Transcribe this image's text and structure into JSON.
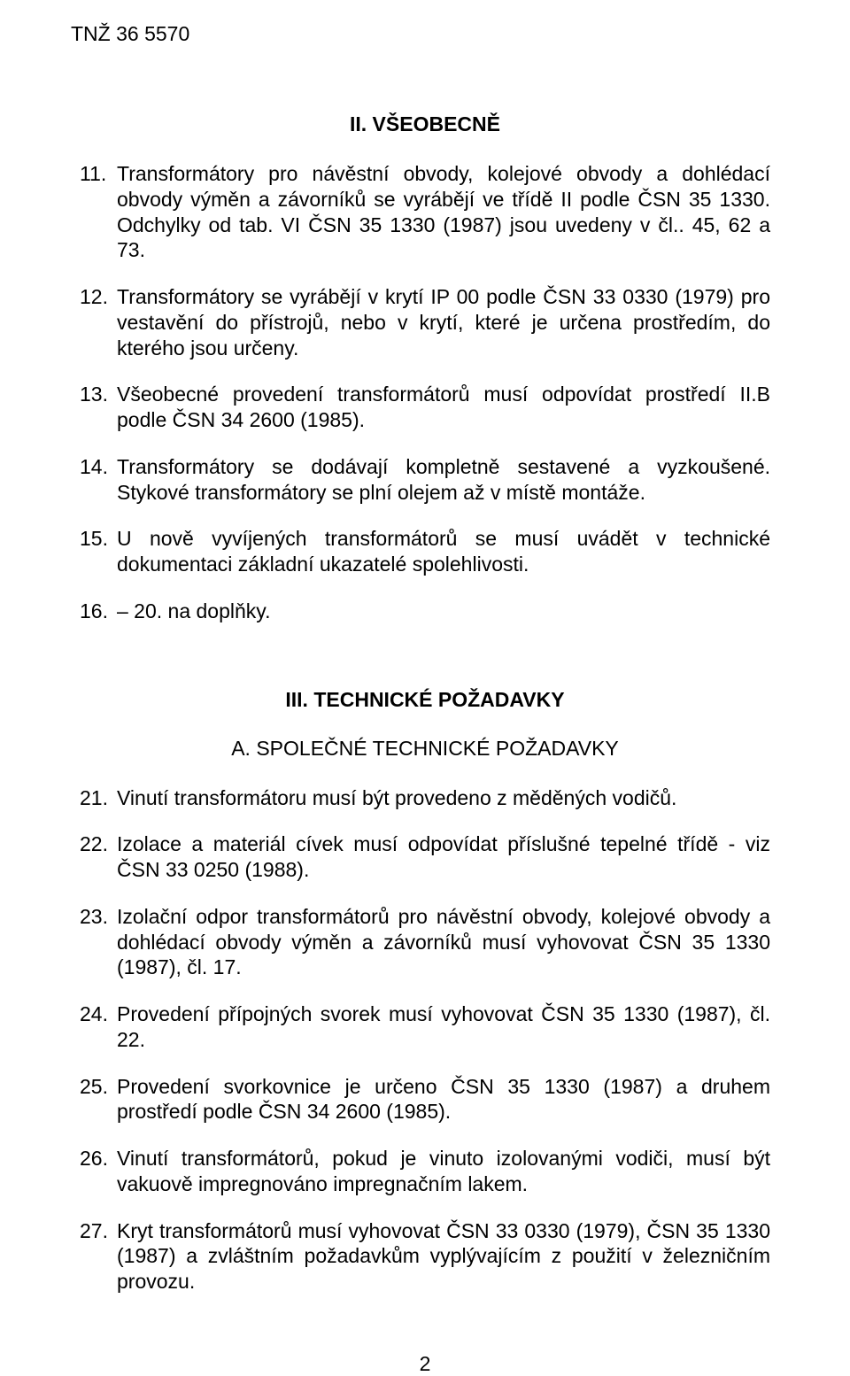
{
  "doc": {
    "header": "TNŽ 36 5570",
    "page_number": "2"
  },
  "section2": {
    "title": "II. VŠEOBECNĚ",
    "items": [
      {
        "num": "11.",
        "text": "Transformátory pro návěstní obvody, kolejové obvody a dohlédací obvody výměn a závorníků se vyrábějí ve třídě II podle ČSN 35 1330. Odchylky od tab. VI ČSN 35 1330 (1987) jsou uvedeny v čl.. 45, 62 a 73."
      },
      {
        "num": "12.",
        "text": "Transformátory se vyrábějí v krytí IP 00 podle ČSN 33 0330 (1979) pro vestavění do přístrojů, nebo v krytí, které je určena prostředím, do kterého jsou určeny."
      },
      {
        "num": "13.",
        "text": "Všeobecné provedení transformátorů musí odpovídat prostředí II.B podle ČSN 34 2600 (1985)."
      },
      {
        "num": "14.",
        "text": "Transformátory se dodávají kompletně sestavené a vyzkoušené. Stykové transformátory se plní olejem až v místě montáže."
      },
      {
        "num": "15.",
        "text": "U nově vyvíjených transformátorů se musí uvádět v technické dokumentaci základní ukazatelé spolehlivosti."
      },
      {
        "num": "16.",
        "text": "– 20. na doplňky."
      }
    ]
  },
  "section3": {
    "title": "III. TECHNICKÉ POŽADAVKY",
    "subtitle": "A. SPOLEČNÉ TECHNICKÉ POŽADAVKY",
    "items": [
      {
        "num": "21.",
        "text": "Vinutí transformátoru musí být provedeno z měděných vodičů."
      },
      {
        "num": "22.",
        "text": "Izolace a materiál cívek musí odpovídat příslušné tepelné třídě - viz ČSN 33 0250 (1988)."
      },
      {
        "num": "23.",
        "text": "Izolační odpor transformátorů pro návěstní obvody, kolejové obvody a dohlédací obvody výměn a závorníků musí vyhovovat ČSN 35 1330 (1987), čl. 17."
      },
      {
        "num": "24.",
        "text": "Provedení přípojných svorek musí vyhovovat ČSN 35 1330 (1987), čl. 22."
      },
      {
        "num": "25.",
        "text": "Provedení svorkovnice je určeno ČSN 35 1330 (1987) a druhem prostředí podle ČSN 34 2600 (1985)."
      },
      {
        "num": "26.",
        "text": "Vinutí transformátorů, pokud je vinuto izolovanými vodiči, musí být vakuově impregnováno impregnačním lakem."
      },
      {
        "num": "27.",
        "text": "Kryt transformátorů musí vyhovovat ČSN 33 0330 (1979), ČSN 35 1330 (1987) a zvláštním požadavkům vyplývajícím z použití v železničním provozu."
      }
    ]
  }
}
